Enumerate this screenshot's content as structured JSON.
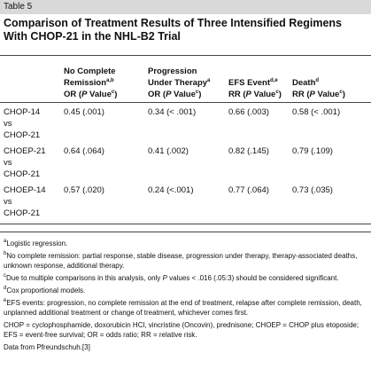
{
  "header": {
    "label": "Table 5",
    "title": "Comparison of Treatment Results of Three Intensified Regimens With CHOP-21 in the NHL-B2 Trial"
  },
  "table": {
    "column_headers": [
      {
        "lines": [
          [
            "No Complete"
          ],
          [
            "Remission",
            "a,b"
          ],
          [
            "OR (",
            "P",
            " Value",
            "c",
            ")"
          ]
        ]
      },
      {
        "lines": [
          [
            "Progression"
          ],
          [
            "Under Therapy",
            "a"
          ],
          [
            "OR (",
            "P",
            " Value",
            "c",
            ")"
          ]
        ]
      },
      {
        "lines": [
          [
            "EFS Event",
            "d,e"
          ],
          [
            "RR (",
            "P",
            " Value",
            "c",
            ")"
          ]
        ]
      },
      {
        "lines": [
          [
            "Death",
            "d"
          ],
          [
            "RR (",
            "P",
            " Value",
            "c",
            ")"
          ]
        ]
      }
    ],
    "rows": [
      {
        "label": [
          "CHOP-14",
          "vs",
          "CHOP-21"
        ],
        "values": [
          "0.45 (.001)",
          "0.34 (< .001)",
          "0.66 (.003)",
          "0.58 (< .001)"
        ]
      },
      {
        "label": [
          "CHOEP-21",
          "vs",
          "CHOP-21"
        ],
        "values": [
          "0.64 (.064)",
          "0.41 (.002)",
          "0.82 (.145)",
          "0.79 (.109)"
        ]
      },
      {
        "label": [
          "CHOEP-14",
          "vs",
          "CHOP-21"
        ],
        "values": [
          "0.57 (.020)",
          "0.24 (<.001)",
          "0.77 (.064)",
          "0.73 (.035)"
        ]
      }
    ]
  },
  "footnotes": [
    {
      "mark": "a",
      "text": [
        "Logistic regression."
      ]
    },
    {
      "mark": "b",
      "text": [
        "No complete remission: partial response, stable disease, progression under therapy, therapy-associated deaths, unknown response, additional therapy."
      ]
    },
    {
      "mark": "c",
      "text": [
        "Due to multiple comparisons in this analysis, only ",
        "P",
        " values < .016 (.05:3) should be considered significant."
      ]
    },
    {
      "mark": "d",
      "text": [
        "Cox proportional models."
      ]
    },
    {
      "mark": "e",
      "text": [
        "EFS events: progression, no complete remission at the end of treatment, relapse after complete remission, death, unplanned additional treatment or change of treatment, whichever comes first."
      ]
    },
    {
      "text": [
        "CHOP = cyclophosphamide, doxorubicin HCl, vincristine (Oncovin), prednisone; CHOEP = CHOP plus etoposide; EFS = event-free survival; OR = odds ratio; RR = relative risk."
      ]
    },
    {
      "text": [
        "Data from Pfreundschuh.[3]"
      ]
    }
  ]
}
